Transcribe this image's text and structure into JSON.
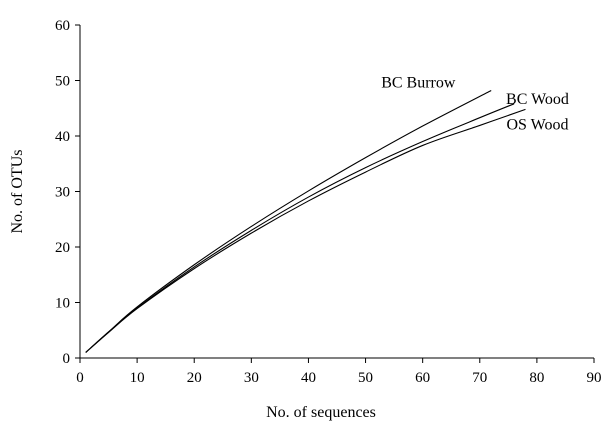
{
  "chart_data": {
    "type": "line",
    "title": "",
    "xlabel": "No. of sequences",
    "ylabel": "No. of OTUs",
    "xlim": [
      0,
      90
    ],
    "ylim": [
      0,
      60
    ],
    "xticks": [
      0,
      10,
      20,
      30,
      40,
      50,
      60,
      70,
      80,
      90
    ],
    "yticks": [
      0,
      10,
      20,
      30,
      40,
      50,
      60
    ],
    "grid": false,
    "series": [
      {
        "name": "BC Burrow",
        "x": [
          1,
          5,
          10,
          20,
          30,
          40,
          50,
          60,
          72
        ],
        "y": [
          1,
          4.7,
          9.2,
          16.8,
          23.7,
          30.1,
          36.1,
          41.8,
          48.2
        ]
      },
      {
        "name": "BC Wood",
        "x": [
          1,
          5,
          10,
          20,
          30,
          40,
          50,
          60,
          70,
          76
        ],
        "y": [
          1,
          4.7,
          9.0,
          16.4,
          23.0,
          29.0,
          34.3,
          39.0,
          43.3,
          45.8
        ]
      },
      {
        "name": "OS Wood",
        "x": [
          1,
          5,
          10,
          20,
          30,
          40,
          50,
          60,
          70,
          78
        ],
        "y": [
          1,
          4.6,
          8.9,
          16.1,
          22.5,
          28.3,
          33.5,
          38.3,
          41.9,
          44.8
        ]
      }
    ]
  }
}
